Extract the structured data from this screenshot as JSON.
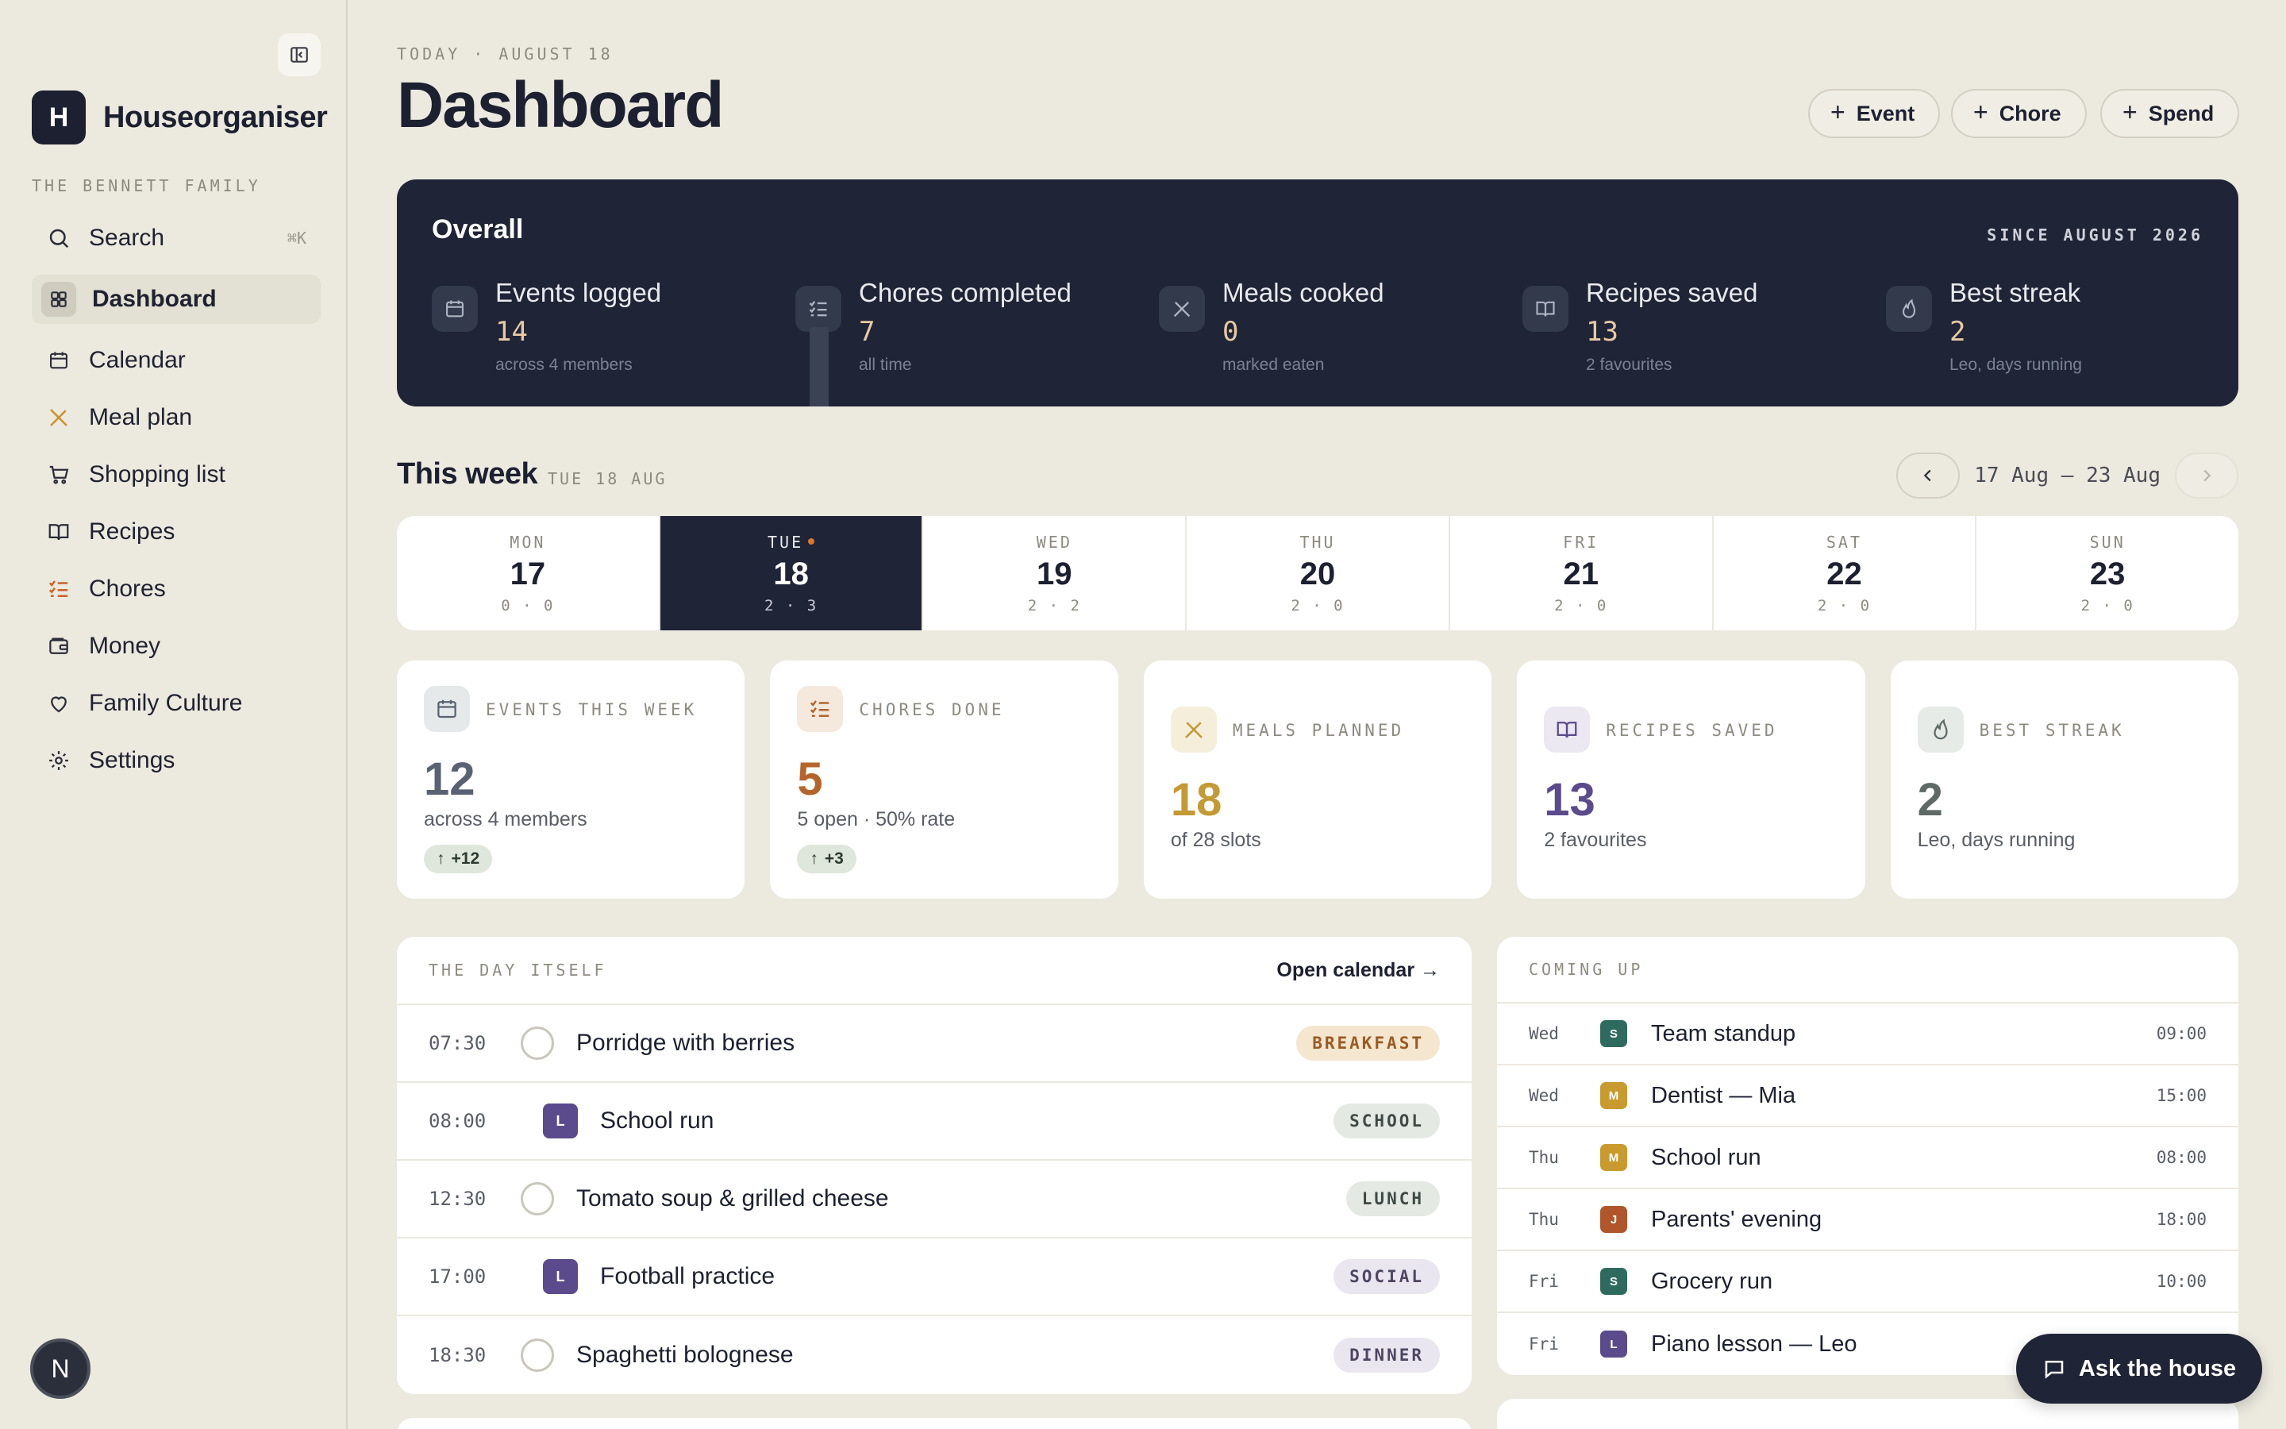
{
  "app": {
    "name": "Houseorganiser",
    "logo_letter": "H",
    "family": "THE BENNETT FAMILY",
    "user_initial": "N"
  },
  "sidebar": {
    "search_label": "Search",
    "search_shortcut": "⌘K",
    "items": [
      {
        "label": "Dashboard",
        "icon": "grid-icon",
        "active": true
      },
      {
        "label": "Calendar",
        "icon": "calendar-icon"
      },
      {
        "label": "Meal plan",
        "icon": "utensils-icon"
      },
      {
        "label": "Shopping list",
        "icon": "cart-icon"
      },
      {
        "label": "Recipes",
        "icon": "book-icon"
      },
      {
        "label": "Chores",
        "icon": "checklist-icon"
      },
      {
        "label": "Money",
        "icon": "wallet-icon"
      },
      {
        "label": "Family Culture",
        "icon": "heart-icon"
      },
      {
        "label": "Settings",
        "icon": "gear-icon"
      }
    ]
  },
  "header": {
    "date_label": "TODAY · AUGUST 18",
    "title": "Dashboard",
    "actions": [
      "Event",
      "Chore",
      "Spend"
    ]
  },
  "overall": {
    "title": "Overall",
    "since": "SINCE AUGUST 2026",
    "stats": [
      {
        "label": "Events logged",
        "value": "14",
        "sub": "across 4 members",
        "icon": "calendar-icon"
      },
      {
        "label": "Chores completed",
        "value": "7",
        "sub": "all time",
        "icon": "checklist-icon"
      },
      {
        "label": "Meals cooked",
        "value": "0",
        "sub": "marked eaten",
        "icon": "utensils-icon"
      },
      {
        "label": "Recipes saved",
        "value": "13",
        "sub": "2 favourites",
        "icon": "book-icon"
      },
      {
        "label": "Best streak",
        "value": "2",
        "sub": "Leo, days running",
        "icon": "flame-icon"
      }
    ]
  },
  "week": {
    "title": "This week",
    "sub": "TUE 18 AUG",
    "range": "17 Aug – 23 Aug",
    "days": [
      {
        "name": "MON",
        "date": "17",
        "counts": "0 · 0"
      },
      {
        "name": "TUE",
        "date": "18",
        "counts": "2 · 3",
        "active": true
      },
      {
        "name": "WED",
        "date": "19",
        "counts": "2 · 2"
      },
      {
        "name": "THU",
        "date": "20",
        "counts": "2 · 0"
      },
      {
        "name": "FRI",
        "date": "21",
        "counts": "2 · 0"
      },
      {
        "name": "SAT",
        "date": "22",
        "counts": "2 · 0"
      },
      {
        "name": "SUN",
        "date": "23",
        "counts": "2 · 0"
      }
    ]
  },
  "cards": [
    {
      "label": "EVENTS THIS WEEK",
      "value": "12",
      "sub": "across 4 members",
      "badge": "+12",
      "icon": "calendar-icon",
      "color": "#586272",
      "bg": "#e6e9ea"
    },
    {
      "label": "CHORES DONE",
      "value": "5",
      "sub": "5 open · 50% rate",
      "badge": "+3",
      "icon": "checklist-icon",
      "color": "#b5652b",
      "bg": "#f4e9dc"
    },
    {
      "label": "MEALS PLANNED",
      "value": "18",
      "sub": "of 28 slots",
      "icon": "utensils-icon",
      "color": "#c39a33",
      "bg": "#f5eedb"
    },
    {
      "label": "RECIPES SAVED",
      "value": "13",
      "sub": "2 favourites",
      "icon": "book-icon",
      "color": "#5b4a8c",
      "bg": "#ebe8f1"
    },
    {
      "label": "BEST STREAK",
      "value": "2",
      "sub": "Leo, days running",
      "icon": "flame-icon",
      "color": "#5f6a66",
      "bg": "#e6ebe8"
    }
  ],
  "day_itself": {
    "label": "THE DAY ITSELF",
    "link": "Open calendar →",
    "rows": [
      {
        "time": "07:30",
        "title": "Porridge with berries",
        "tag": "BREAKFAST",
        "kind": "meal"
      },
      {
        "time": "08:00",
        "title": "School run",
        "tag": "SCHOOL",
        "kind": "event",
        "initial": "L"
      },
      {
        "time": "12:30",
        "title": "Tomato soup & grilled cheese",
        "tag": "LUNCH",
        "kind": "meal"
      },
      {
        "time": "17:00",
        "title": "Football practice",
        "tag": "SOCIAL",
        "kind": "event",
        "initial": "L"
      },
      {
        "time": "18:30",
        "title": "Spaghetti bolognese",
        "tag": "DINNER",
        "kind": "meal"
      }
    ]
  },
  "coming_up": {
    "label": "COMING UP",
    "rows": [
      {
        "day": "Wed",
        "initial": "S",
        "color": "#2e6b5e",
        "title": "Team standup",
        "time": "09:00"
      },
      {
        "day": "Wed",
        "initial": "M",
        "color": "#c99a2e",
        "title": "Dentist — Mia",
        "time": "15:00"
      },
      {
        "day": "Thu",
        "initial": "M",
        "color": "#c99a2e",
        "title": "School run",
        "time": "08:00"
      },
      {
        "day": "Thu",
        "initial": "J",
        "color": "#b0562a",
        "title": "Parents' evening",
        "time": "18:00"
      },
      {
        "day": "Fri",
        "initial": "S",
        "color": "#2e6b5e",
        "title": "Grocery run",
        "time": "10:00"
      },
      {
        "day": "Fri",
        "initial": "L",
        "color": "#5b4a8c",
        "title": "Piano lesson — Leo",
        "time": ""
      }
    ]
  },
  "ask_button": "Ask the house"
}
